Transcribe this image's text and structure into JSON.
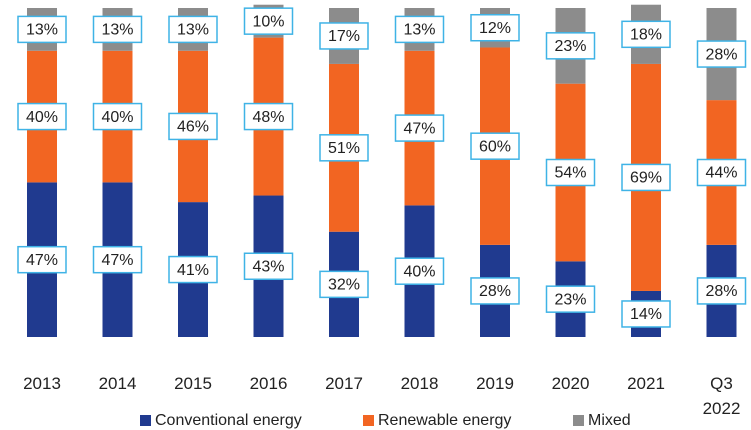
{
  "chart_data": {
    "type": "stacked_bar",
    "categories": [
      "2013",
      "2014",
      "2015",
      "2016",
      "2017",
      "2018",
      "2019",
      "2020",
      "2021",
      "Q3 2022"
    ],
    "series": [
      {
        "name": "Conventional energy",
        "color": "#203a8f",
        "values": [
          47,
          47,
          41,
          43,
          32,
          40,
          28,
          23,
          14,
          28
        ],
        "value_labels": [
          "47%",
          "47%",
          "41%",
          "43%",
          "32%",
          "40%",
          "28%",
          "23%",
          "14%",
          "28%"
        ]
      },
      {
        "name": "Renewable energy",
        "color": "#f26522",
        "values": [
          40,
          40,
          46,
          48,
          51,
          47,
          60,
          54,
          69,
          44
        ],
        "value_labels": [
          "40%",
          "40%",
          "46%",
          "48%",
          "51%",
          "47%",
          "60%",
          "54%",
          "69%",
          "44%"
        ]
      },
      {
        "name": "Mixed",
        "color": "#8c8c8c",
        "values": [
          13,
          13,
          13,
          10,
          17,
          13,
          12,
          23,
          18,
          28
        ],
        "value_labels": [
          "13%",
          "13%",
          "13%",
          "10%",
          "17%",
          "13%",
          "12%",
          "23%",
          "18%",
          "28%"
        ]
      }
    ],
    "ylim": [
      0,
      100
    ],
    "legend": "bottom"
  }
}
